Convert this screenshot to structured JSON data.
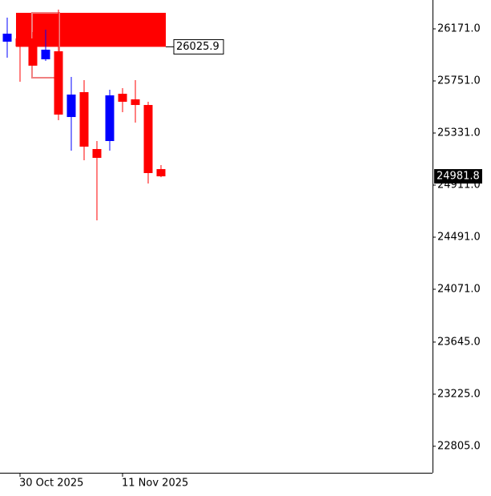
{
  "chart_data": {
    "type": "candlestick",
    "categories": [
      null,
      "30 Oct 2025",
      null,
      null,
      null,
      null,
      null,
      null,
      null,
      "11 Nov 2025",
      null,
      null,
      null
    ],
    "series": [
      {
        "name": "open",
        "values": [
          26067.6,
          26093.5,
          26093.5,
          25925.5,
          25990.0,
          25460.0,
          25660.5,
          25201.8,
          25266.4,
          25647.6,
          25602.4,
          25557.0,
          25040.0
        ]
      },
      {
        "name": "high",
        "values": [
          26261.4,
          26287.0,
          26145.0,
          26164.5,
          26326.0,
          25783.3,
          25757.5,
          25266.4,
          25680.0,
          25692.8,
          25757.5,
          25583.0,
          25072.5
        ]
      },
      {
        "name": "low",
        "values": [
          25938.4,
          25744.5,
          25874.0,
          25912.5,
          25434.4,
          25189.0,
          25111.3,
          24626.7,
          25189.0,
          25499.0,
          25415.0,
          24924.0,
          24975.0
        ]
      },
      {
        "name": "close",
        "values": [
          26132.0,
          26028.9,
          25874.0,
          26003.0,
          25479.6,
          25641.0,
          25221.0,
          25130.7,
          25634.7,
          25583.0,
          25557.0,
          25008.0,
          24981.8
        ]
      }
    ],
    "up_color": "#0000ff",
    "down_color": "#ff0000",
    "zones": [
      {
        "top": 26300.2,
        "bottom": 26025.9,
        "color": "#ff0000",
        "filled": true
      },
      {
        "top": 26300.2,
        "bottom": 25776.8,
        "color": "#f08080",
        "filled": false
      }
    ],
    "last_price": 24981.8,
    "ylim": [
      22591.3,
      26403.6
    ],
    "yticks": [
      {
        "value": 26171,
        "label": "26171.0"
      },
      {
        "value": 25751,
        "label": "25751.0"
      },
      {
        "value": 25331,
        "label": "25331.0"
      },
      {
        "value": 24911,
        "label": "24911.0"
      },
      {
        "value": 24491,
        "label": "24491.0"
      },
      {
        "value": 24071,
        "label": "24071.0"
      },
      {
        "value": 23645,
        "label": "23645.0"
      },
      {
        "value": 23225,
        "label": "23225.0"
      },
      {
        "value": 22805,
        "label": "22805.0"
      }
    ]
  }
}
